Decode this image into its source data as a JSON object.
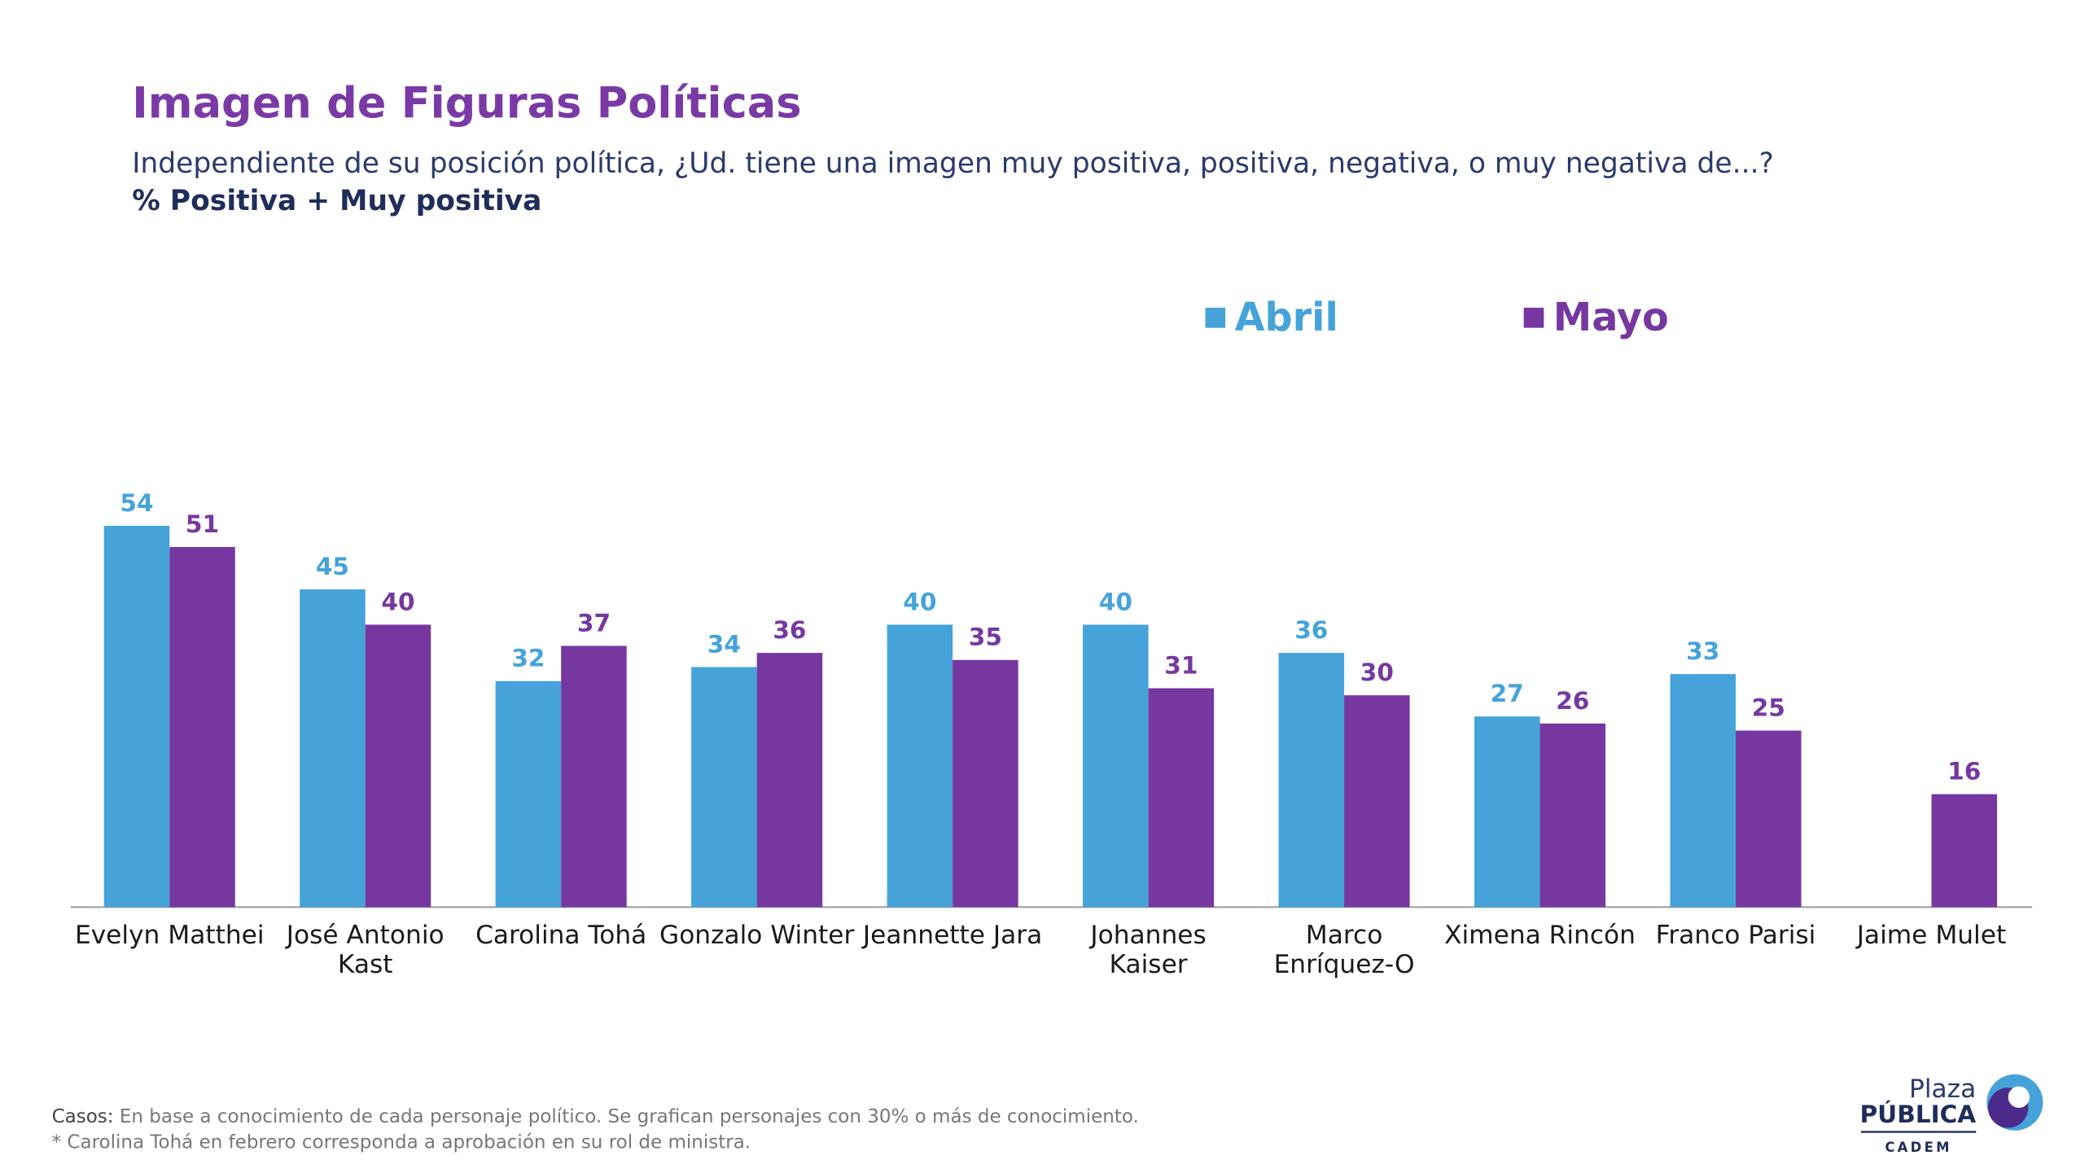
{
  "chart_data": {
    "type": "bar",
    "title": "Imagen de Figuras Políticas",
    "subtitle": "Independiente de su posición política, ¿Ud. tiene una imagen muy positiva, positiva, negativa, o muy negativa de...?",
    "measure": "% Positiva + Muy positiva",
    "categories": [
      "Evelyn Matthei",
      "José Antonio Kast",
      "Carolina Tohá",
      "Gonzalo Winter",
      "Jeannette Jara",
      "Johannes Kaiser",
      "Marco Enríquez-O",
      "Ximena Rincón",
      "Franco Parisi",
      "Jaime Mulet"
    ],
    "series": [
      {
        "name": "Abril",
        "color": "#45a3da",
        "values": [
          54,
          45,
          32,
          34,
          40,
          40,
          36,
          27,
          33,
          null
        ]
      },
      {
        "name": "Mayo",
        "color": "#7638a0",
        "values": [
          51,
          40,
          37,
          36,
          35,
          31,
          30,
          26,
          25,
          16
        ]
      }
    ],
    "legend": "top-right",
    "footnote": {
      "casos_label": "Casos:",
      "casos_text": "En base a conocimiento de cada personaje político. Se grafican personajes con 30% o más de conocimiento.",
      "note": "* Carolina Tohá en febrero corresponda a aprobación en su rol de ministra."
    },
    "logo": {
      "line1": "Plaza",
      "line2": "PÚBLICA",
      "line3": "CADEM"
    }
  }
}
